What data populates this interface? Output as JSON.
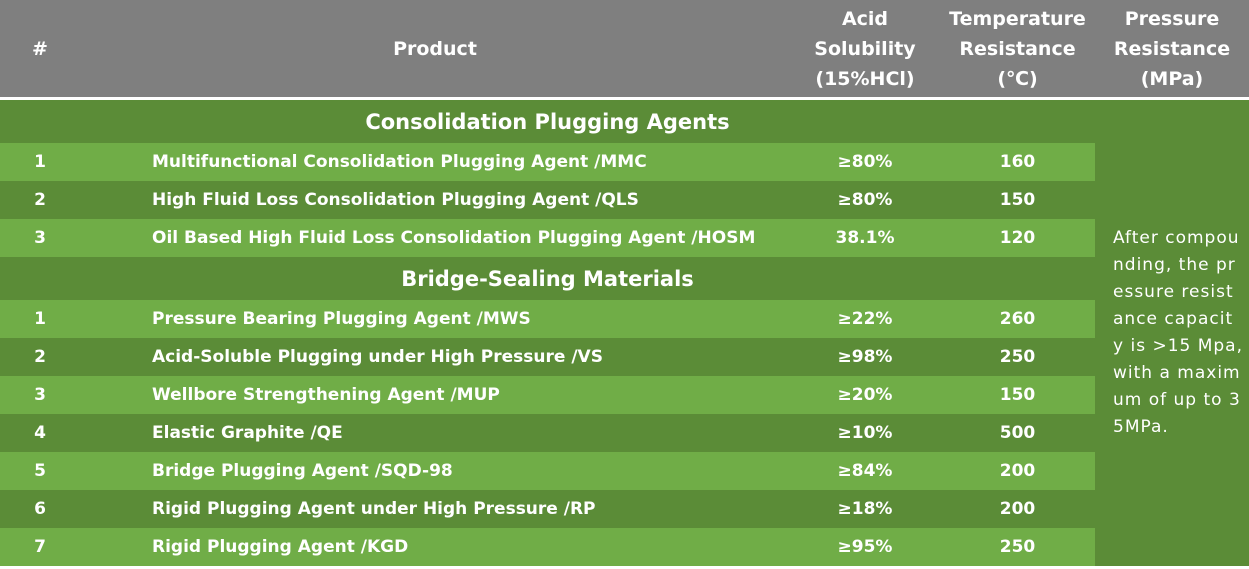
{
  "header": {
    "columns": [
      "#",
      "Product",
      "Acid Solubility (15%HCl)",
      "Temperature Resistance (℃)",
      "Pressure Resistance (MPa)"
    ]
  },
  "sections": [
    {
      "title": "Consolidation Plugging Agents",
      "rows": [
        [
          "1",
          "Multifunctional Consolidation Plugging Agent /MMC",
          "≥80%",
          "160"
        ],
        [
          "2",
          "High Fluid Loss Consolidation Plugging Agent /QLS",
          "≥80%",
          "150"
        ],
        [
          "3",
          "Oil Based High Fluid Loss Consolidation Plugging Agent /HOSM",
          "38.1%",
          "120"
        ]
      ]
    },
    {
      "title": "Bridge-Sealing Materials",
      "rows": [
        [
          "1",
          "Pressure Bearing Plugging Agent /MWS",
          "≥22%",
          "260"
        ],
        [
          "2",
          "Acid-Soluble Plugging under High Pressure  /VS",
          "≥98%",
          "250"
        ],
        [
          "3",
          "Wellbore Strengthening Agent  /MUP",
          "≥20%",
          "150"
        ],
        [
          "4",
          "Elastic Graphite /QE",
          "≥10%",
          "500"
        ],
        [
          "5",
          "Bridge Plugging Agent /SQD-98",
          "≥84%",
          "200"
        ],
        [
          "6",
          "Rigid Plugging Agent under High Pressure /RP",
          "≥18%",
          "200"
        ],
        [
          "7",
          "Rigid Plugging Agent /KGD",
          "≥95%",
          "250"
        ]
      ]
    }
  ],
  "pressure_note": "After compounding, the pressure resistance capacity is >15 Mpa, with a maximum of up to 35MPa."
}
